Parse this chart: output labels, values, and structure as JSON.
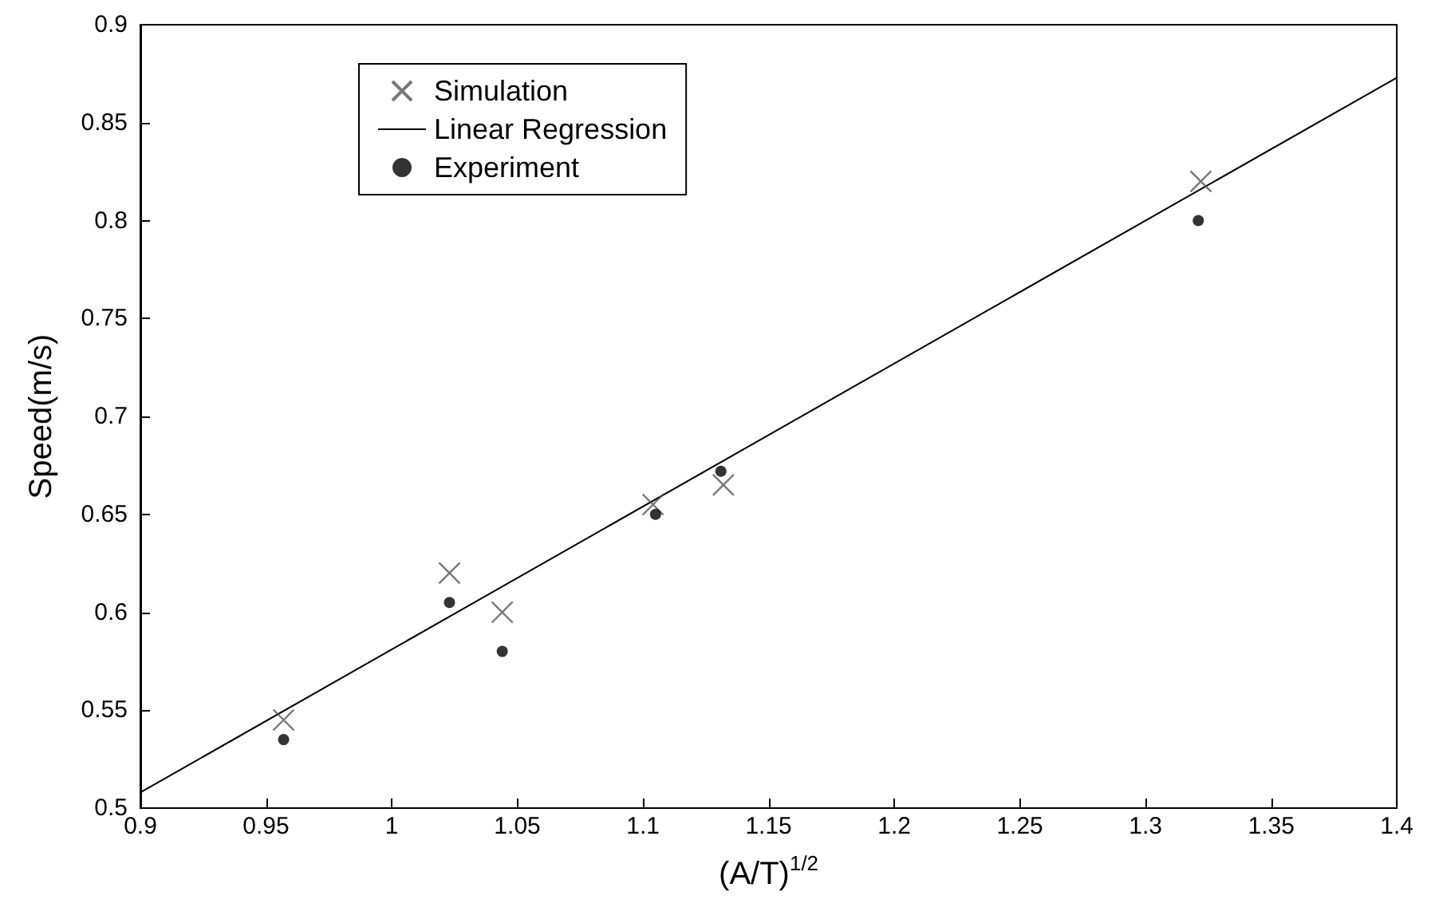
{
  "chart_data": {
    "type": "scatter",
    "xlabel": "(A/T)$^{1/2}$",
    "ylabel": "Speed(m/s)",
    "xlim": [
      0.9,
      1.4
    ],
    "ylim": [
      0.5,
      0.9
    ],
    "xticks": [
      0.9,
      0.95,
      1,
      1.05,
      1.1,
      1.15,
      1.2,
      1.25,
      1.3,
      1.35,
      1.4
    ],
    "yticks": [
      0.5,
      0.55,
      0.6,
      0.65,
      0.7,
      0.75,
      0.8,
      0.85,
      0.9
    ],
    "grid": false,
    "legend": "top left",
    "series": [
      {
        "name": "Simulation",
        "type": "scatter",
        "marker": "cross",
        "color": "#555555",
        "x": [
          0.957,
          1.023,
          1.044,
          1.104,
          1.132,
          1.322
        ],
        "values": [
          0.545,
          0.62,
          0.6,
          0.655,
          0.665,
          0.82
        ]
      },
      {
        "name": "Linear Regression",
        "type": "line",
        "marker": "none",
        "line_style": "solid",
        "color": "#000000",
        "x": [
          0.9,
          1.4
        ],
        "values": [
          0.508,
          0.873
        ]
      },
      {
        "name": "Experiment",
        "type": "scatter",
        "marker": "circle",
        "color": "#000000",
        "x": [
          0.957,
          1.023,
          1.044,
          1.105,
          1.131,
          1.321
        ],
        "values": [
          0.535,
          0.605,
          0.58,
          0.65,
          0.672,
          0.8
        ]
      }
    ]
  }
}
